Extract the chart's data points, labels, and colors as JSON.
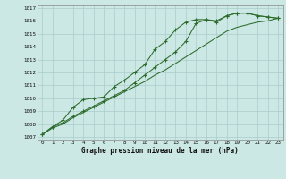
{
  "xlabel": "Graphe pression niveau de la mer (hPa)",
  "bg_color": "#cce8e4",
  "grid_color": "#aacccc",
  "line_color": "#2d6b2d",
  "xlim": [
    -0.5,
    23.5
  ],
  "ylim": [
    1006.8,
    1017.2
  ],
  "xticks": [
    0,
    1,
    2,
    3,
    4,
    5,
    6,
    7,
    8,
    9,
    10,
    11,
    12,
    13,
    14,
    15,
    16,
    17,
    18,
    19,
    20,
    21,
    22,
    23
  ],
  "yticks": [
    1007,
    1008,
    1009,
    1010,
    1011,
    1012,
    1013,
    1014,
    1015,
    1016,
    1017
  ],
  "line1_x": [
    0,
    1,
    2,
    3,
    4,
    5,
    6,
    7,
    8,
    9,
    10,
    11,
    12,
    13,
    14,
    15,
    16,
    17,
    18,
    19,
    20,
    21,
    22,
    23
  ],
  "line1_y": [
    1007.2,
    1007.8,
    1008.1,
    1008.6,
    1009.0,
    1009.4,
    1009.8,
    1010.2,
    1010.6,
    1011.2,
    1011.8,
    1012.4,
    1013.0,
    1013.6,
    1014.4,
    1015.8,
    1016.1,
    1016.0,
    1016.4,
    1016.6,
    1016.6,
    1016.4,
    1016.3,
    1016.2
  ],
  "line2_x": [
    0,
    1,
    2,
    3,
    4,
    5,
    6,
    7,
    8,
    9,
    10,
    11,
    12,
    13,
    14,
    15,
    16,
    17,
    18,
    19,
    20,
    21,
    22,
    23
  ],
  "line2_y": [
    1007.2,
    1007.8,
    1008.3,
    1009.3,
    1009.9,
    1010.0,
    1010.1,
    1010.9,
    1011.4,
    1012.0,
    1012.6,
    1013.8,
    1014.4,
    1015.3,
    1015.9,
    1016.1,
    1016.1,
    1015.9,
    1016.4,
    1016.6,
    1016.6,
    1016.4,
    1016.3,
    1016.2
  ],
  "line3_x": [
    0,
    1,
    2,
    3,
    4,
    5,
    6,
    7,
    8,
    9,
    10,
    11,
    12,
    13,
    14,
    15,
    16,
    17,
    18,
    19,
    20,
    21,
    22,
    23
  ],
  "line3_y": [
    1007.2,
    1007.7,
    1008.0,
    1008.5,
    1008.9,
    1009.3,
    1009.7,
    1010.1,
    1010.5,
    1010.9,
    1011.3,
    1011.8,
    1012.2,
    1012.7,
    1013.2,
    1013.7,
    1014.2,
    1014.7,
    1015.2,
    1015.5,
    1015.7,
    1015.9,
    1016.0,
    1016.2
  ]
}
